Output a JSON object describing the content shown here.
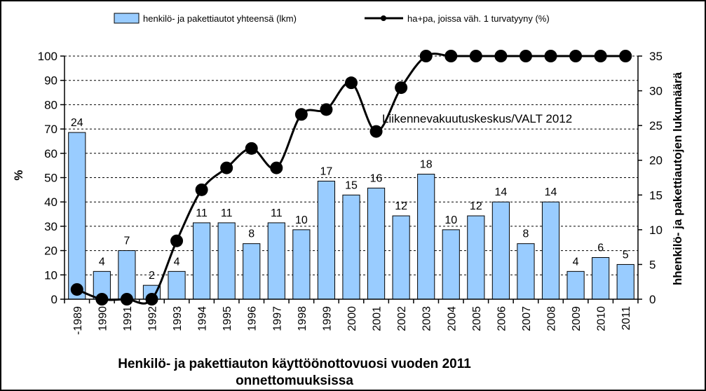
{
  "chart_data": {
    "type": "bar",
    "categories": [
      "-1989",
      "1990",
      "1991",
      "1992",
      "1993",
      "1994",
      "1995",
      "1996",
      "1997",
      "1998",
      "1999",
      "2000",
      "2001",
      "2002",
      "2003",
      "2004",
      "2005",
      "2006",
      "2007",
      "2008",
      "2009",
      "2010",
      "2011"
    ],
    "series": [
      {
        "name": "henkilö- ja pakettiautot yhteensä (lkm)",
        "type": "bar",
        "axis": "right",
        "color": "#99ccff",
        "values": [
          24,
          4,
          7,
          2,
          4,
          11,
          11,
          8,
          11,
          10,
          17,
          15,
          16,
          12,
          18,
          10,
          12,
          14,
          8,
          14,
          4,
          6,
          5
        ]
      },
      {
        "name": "ha+pa, joissa väh. 1 turvatyyny (%)",
        "type": "line",
        "axis": "left",
        "color": "#000000",
        "values": [
          4,
          0,
          0,
          0,
          24,
          45,
          54,
          62,
          54,
          76,
          78,
          89,
          69,
          87,
          100,
          100,
          100,
          100,
          100,
          100,
          100,
          100,
          100
        ]
      }
    ],
    "y_left": {
      "label": "%",
      "ylim": [
        0,
        100
      ],
      "ticks": [
        0,
        10,
        20,
        30,
        40,
        50,
        60,
        70,
        80,
        90,
        100
      ]
    },
    "y_right": {
      "label": "hhenkilö- ja pakettiautojen lukumäärä",
      "ylim": [
        0,
        35
      ],
      "ticks": [
        0,
        5,
        10,
        15,
        20,
        25,
        30,
        35
      ]
    },
    "xlabel_lines": [
      "Henkilö- ja pakettiauton käyttöönottovuosi vuoden 2011",
      "onnettomuuksissa"
    ],
    "annotation": "Liikennevakuutuskeskus/VALT 2012",
    "grid": true,
    "legend": "top"
  }
}
